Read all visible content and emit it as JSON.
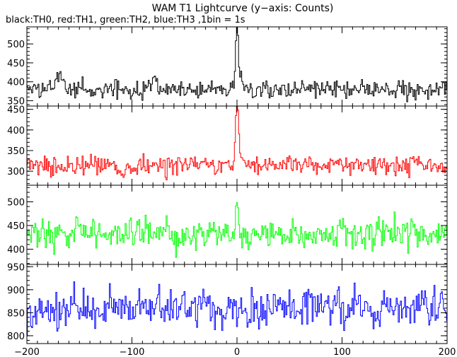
{
  "chart_data": {
    "type": "line",
    "title": "WAM T1 Lightcurve (y−axis: Counts)",
    "subtitle": "black:TH0, red:TH1, green:TH2, blue:TH3 ,1bin = 1s",
    "xlim": [
      -200,
      200
    ],
    "x_ticks": [
      -200,
      -100,
      0,
      100,
      200
    ],
    "x_tick_labels": [
      "−200",
      "−100",
      "0",
      "100",
      "200"
    ],
    "panels": [
      {
        "name": "TH0",
        "color": "#000000",
        "ylim": [
          336,
          545
        ],
        "yticks": [
          350,
          400,
          450,
          500
        ],
        "baseline": 380,
        "sd": 16,
        "features": [
          {
            "x": 0,
            "width": 1.2,
            "amp": 150
          },
          {
            "x": 2,
            "width": 3,
            "amp": 40
          },
          {
            "x": -80,
            "width": 4,
            "amp": 25
          },
          {
            "x": -170,
            "width": 4,
            "amp": 30
          }
        ]
      },
      {
        "name": "TH1",
        "color": "#ff0000",
        "ylim": [
          266,
          458
        ],
        "yticks": [
          300,
          350,
          400,
          450
        ],
        "baseline": 315,
        "sd": 16,
        "features": [
          {
            "x": 0,
            "width": 1.2,
            "amp": 135
          },
          {
            "x": 2,
            "width": 3,
            "amp": 35
          }
        ]
      },
      {
        "name": "TH2",
        "color": "#00ff00",
        "ylim": [
          368,
          535
        ],
        "yticks": [
          400,
          450,
          500
        ],
        "baseline": 432,
        "sd": 22,
        "features": [
          {
            "x": 0,
            "width": 1.2,
            "amp": 90
          }
        ]
      },
      {
        "name": "TH3",
        "color": "#0000ff",
        "ylim": [
          783,
          955
        ],
        "yticks": [
          800,
          850,
          900,
          950
        ],
        "baseline": 862,
        "sd": 28,
        "features": []
      }
    ],
    "grid": false,
    "legend": "none"
  }
}
